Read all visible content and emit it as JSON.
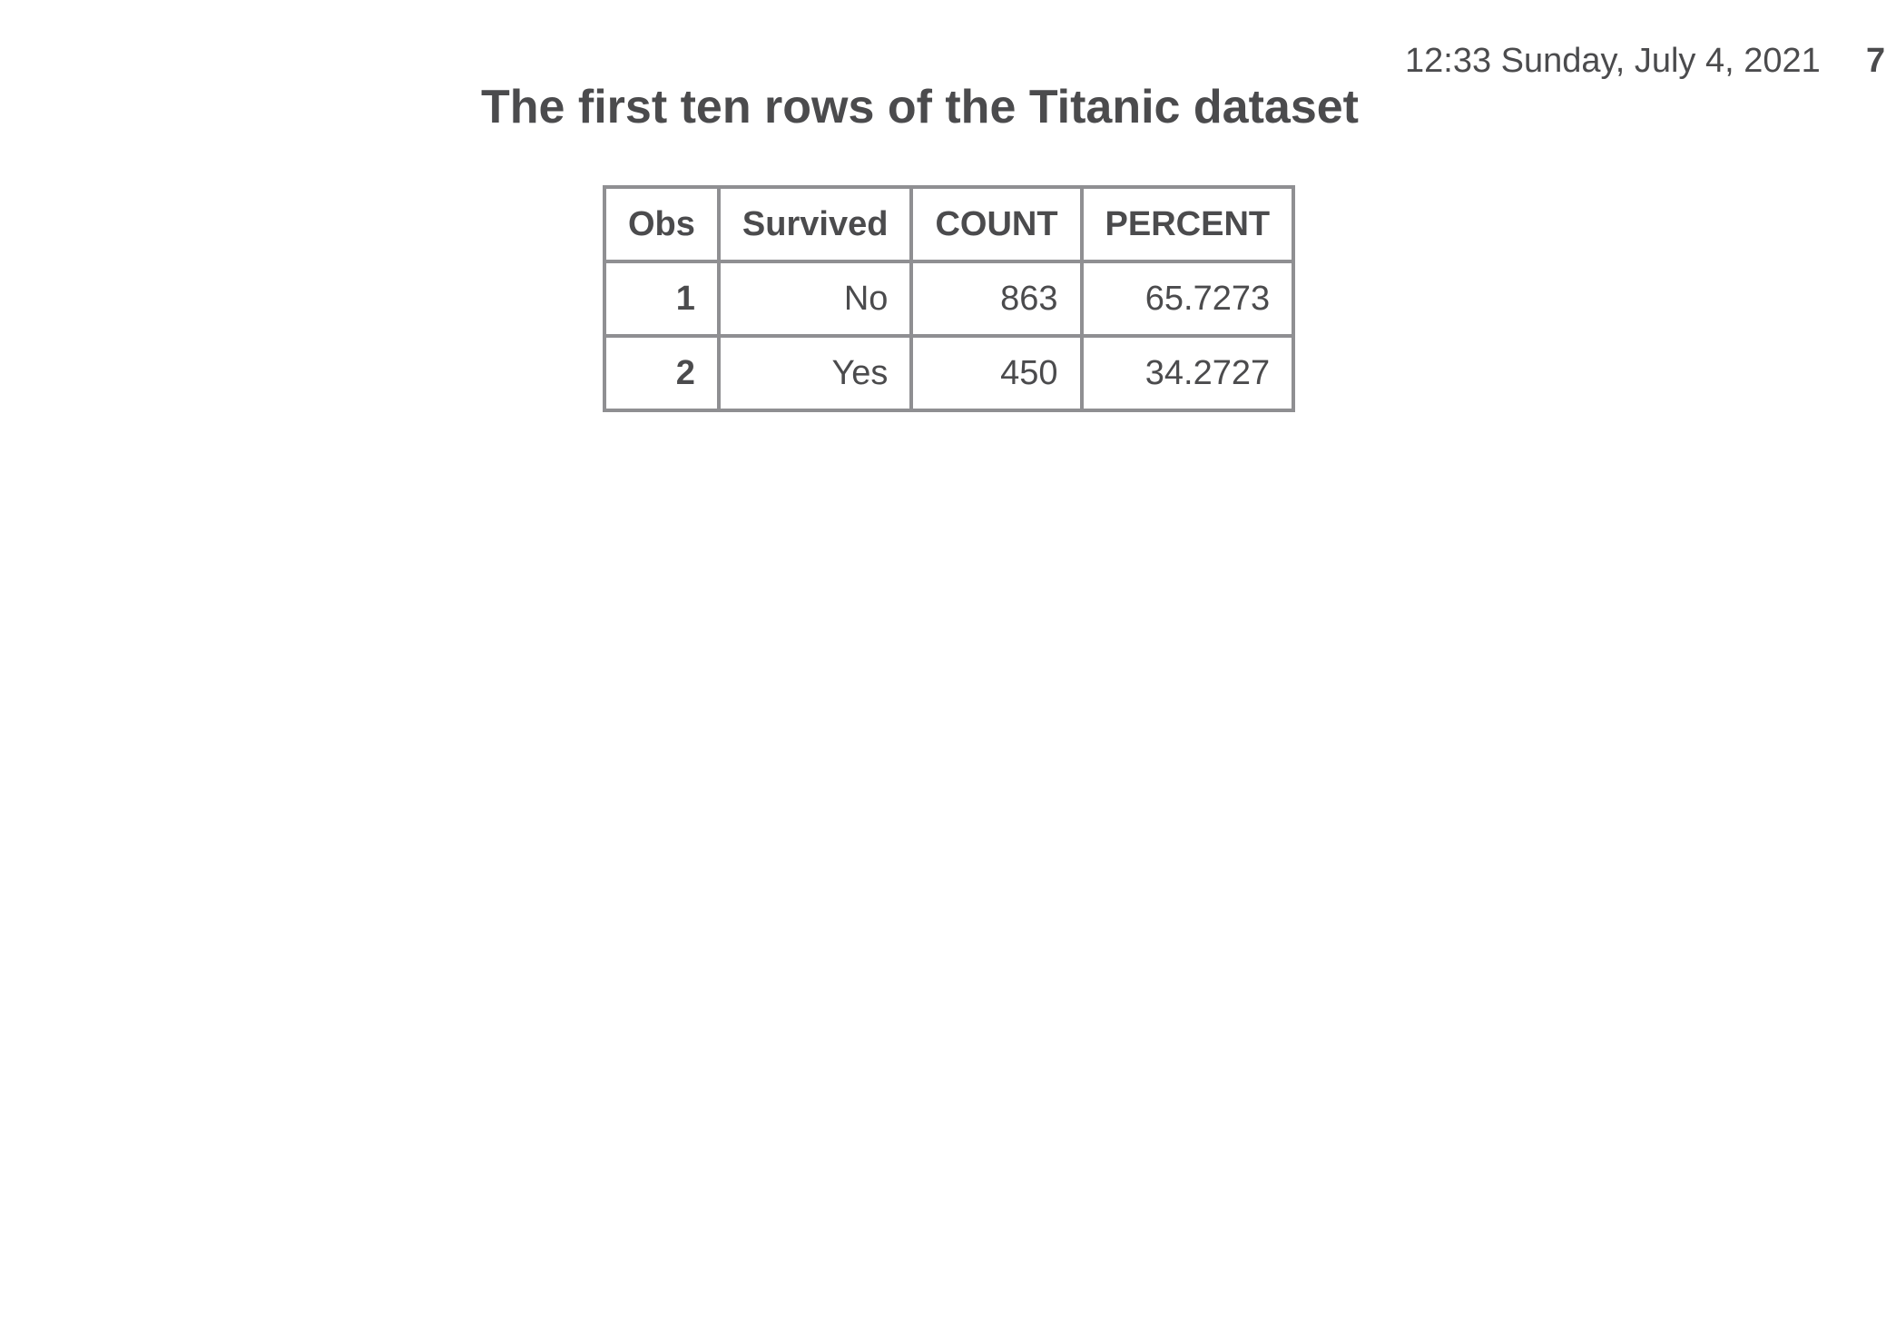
{
  "header": {
    "datetime": "12:33 Sunday, July 4, 2021",
    "page_number": "7"
  },
  "title": "The first ten rows of the Titanic dataset",
  "table": {
    "columns": [
      "Obs",
      "Survived",
      "COUNT",
      "PERCENT"
    ],
    "rows": [
      {
        "obs": "1",
        "survived": "No",
        "count": "863",
        "percent": "65.7273"
      },
      {
        "obs": "2",
        "survived": "Yes",
        "count": "450",
        "percent": "34.2727"
      }
    ]
  },
  "colors": {
    "text": "#4b4b4d",
    "border": "#8f8f92",
    "background": "#ffffff"
  }
}
